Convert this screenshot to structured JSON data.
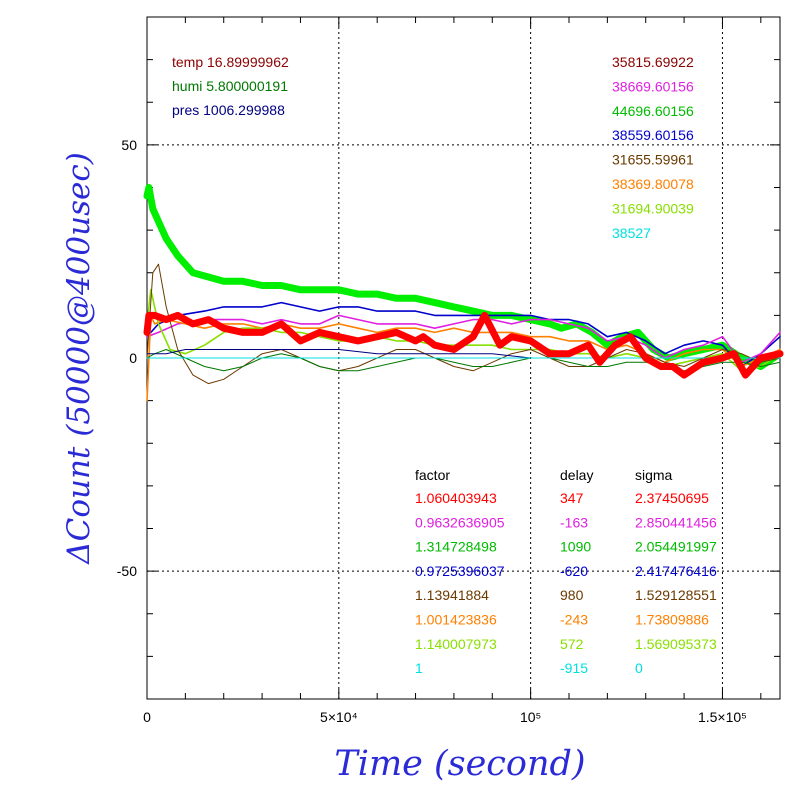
{
  "chart_data": {
    "type": "line",
    "xlabel": "Time (second)",
    "ylabel": "ΔCount (50000@400usec)",
    "xlim": [
      0,
      165000
    ],
    "ylim": [
      -80,
      80
    ],
    "xticks": [
      {
        "value": 0,
        "label": "0"
      },
      {
        "value": 50000,
        "label": "5×10⁴"
      },
      {
        "value": 100000,
        "label": "10⁵"
      },
      {
        "value": 150000,
        "label": "1.5×10⁵"
      }
    ],
    "yticks": [
      {
        "value": 50,
        "label": "50"
      },
      {
        "value": 0,
        "label": "0"
      },
      {
        "value": -50,
        "label": "-50"
      }
    ],
    "grid": "dotted at labeled ticks",
    "env_labels": [
      {
        "text": "temp 16.89999962",
        "color": "#8b0000"
      },
      {
        "text": "humi 5.800000191",
        "color": "#007700"
      },
      {
        "text": "pres 1006.299988",
        "color": "#000080"
      }
    ],
    "mean_counts": [
      {
        "text": "35815.69922",
        "color": "#8b0000"
      },
      {
        "text": "38669.60156",
        "color": "#e020e0"
      },
      {
        "text": "44696.60156",
        "color": "#00bb00"
      },
      {
        "text": "38559.60156",
        "color": "#0000cc"
      },
      {
        "text": "31655.59961",
        "color": "#6b3a00"
      },
      {
        "text": "38369.80078",
        "color": "#ff8000"
      },
      {
        "text": "31694.90039",
        "color": "#88e000"
      },
      {
        "text": "38527",
        "color": "#00e0e0"
      }
    ],
    "table": {
      "headers": [
        "factor",
        "delay",
        "sigma"
      ],
      "rows": [
        {
          "factor": "1.060403943",
          "delay": "347",
          "sigma": "2.37450695",
          "color": "#ff0000"
        },
        {
          "factor": "0.9632636905",
          "delay": "-163",
          "sigma": "2.850441456",
          "color": "#e020e0"
        },
        {
          "factor": "1.314728498",
          "delay": "1090",
          "sigma": "2.054491997",
          "color": "#00bb00"
        },
        {
          "factor": "0.9725396037",
          "delay": "-620",
          "sigma": "2.417476416",
          "color": "#0000cc"
        },
        {
          "factor": "1.13941884",
          "delay": "980",
          "sigma": "1.529128551",
          "color": "#6b3a00"
        },
        {
          "factor": "1.001423836",
          "delay": "-243",
          "sigma": "1.73809886",
          "color": "#ff8000"
        },
        {
          "factor": "1.140007973",
          "delay": "572",
          "sigma": "1.569095373",
          "color": "#88e000"
        },
        {
          "factor": "1",
          "delay": "-915",
          "sigma": "0",
          "color": "#00e0e0"
        }
      ]
    },
    "series": [
      {
        "color": "#00ee00",
        "width": 7,
        "x": [
          0,
          500,
          1500,
          3000,
          5000,
          8000,
          12000,
          16000,
          20000,
          25000,
          30000,
          35000,
          40000,
          45000,
          50000,
          55000,
          60000,
          65000,
          70000,
          75000,
          80000,
          85000,
          90000,
          95000,
          100000,
          105000,
          108000,
          112000,
          116000,
          120000,
          124000,
          128000,
          132000,
          136000,
          140000,
          145000,
          150000,
          155000,
          160000,
          165000
        ],
        "y": [
          38,
          40,
          35,
          32,
          28,
          24,
          20,
          19,
          18,
          18,
          17,
          17,
          16,
          16,
          16,
          15,
          15,
          14,
          14,
          13,
          12,
          11,
          10,
          10,
          9,
          8,
          7,
          8,
          6,
          3,
          5,
          6,
          2,
          0,
          1,
          2,
          3,
          0,
          -2,
          1
        ]
      },
      {
        "color": "#0000cc",
        "width": 1.6,
        "x": [
          0,
          3000,
          8000,
          15000,
          20000,
          25000,
          30000,
          35000,
          40000,
          45000,
          50000,
          55000,
          60000,
          65000,
          70000,
          75000,
          80000,
          85000,
          90000,
          95000,
          100000,
          105000,
          110000,
          115000,
          120000,
          125000,
          130000,
          135000,
          140000,
          145000,
          150000,
          155000,
          160000,
          165000
        ],
        "y": [
          5,
          8,
          10,
          11,
          12,
          12,
          12,
          13,
          12,
          11,
          12,
          12,
          11,
          11,
          11,
          10,
          10,
          10,
          10,
          10,
          10,
          9,
          9,
          8,
          5,
          6,
          4,
          1,
          3,
          4,
          3,
          -2,
          1,
          5
        ]
      },
      {
        "color": "#e020e0",
        "width": 1.6,
        "x": [
          0,
          3000,
          8000,
          15000,
          20000,
          25000,
          30000,
          35000,
          40000,
          45000,
          50000,
          55000,
          60000,
          65000,
          70000,
          75000,
          80000,
          85000,
          90000,
          95000,
          100000,
          105000,
          110000,
          115000,
          120000,
          125000,
          130000,
          135000,
          140000,
          145000,
          150000,
          155000,
          160000,
          165000
        ],
        "y": [
          5,
          6,
          8,
          9,
          9,
          9,
          8,
          9,
          8,
          8,
          10,
          9,
          8,
          8,
          8,
          7,
          8,
          9,
          9,
          8,
          9,
          9,
          8,
          7,
          4,
          5,
          3,
          0,
          2,
          3,
          5,
          -1,
          1,
          6
        ]
      },
      {
        "color": "#ff8000",
        "width": 1.6,
        "x": [
          0,
          1000,
          2000,
          5000,
          10000,
          15000,
          20000,
          25000,
          30000,
          35000,
          40000,
          45000,
          50000,
          55000,
          60000,
          65000,
          70000,
          75000,
          80000,
          85000,
          90000,
          95000,
          100000,
          105000,
          110000,
          115000,
          120000,
          125000,
          130000,
          135000,
          140000,
          145000,
          150000,
          155000,
          160000,
          165000
        ],
        "y": [
          -10,
          10,
          8,
          9,
          8,
          7,
          8,
          8,
          7,
          8,
          7,
          7,
          8,
          7,
          6,
          7,
          7,
          6,
          7,
          6,
          6,
          6,
          5,
          5,
          4,
          4,
          2,
          3,
          1,
          -1,
          1,
          2,
          2,
          -2,
          0,
          2
        ]
      },
      {
        "color": "#88e000",
        "width": 1.6,
        "x": [
          0,
          1000,
          3000,
          6000,
          10000,
          15000,
          20000,
          25000,
          30000,
          35000,
          40000,
          45000,
          50000,
          55000,
          60000,
          65000,
          70000,
          75000,
          80000,
          85000,
          90000,
          95000,
          100000,
          105000,
          110000,
          115000,
          120000,
          125000,
          130000,
          135000,
          140000,
          145000,
          150000,
          155000,
          160000,
          165000
        ],
        "y": [
          8,
          16,
          8,
          2,
          1,
          3,
          6,
          7,
          7,
          6,
          6,
          5,
          4,
          4,
          5,
          4,
          4,
          3,
          3,
          3,
          3,
          2,
          2,
          2,
          1,
          1,
          0,
          1,
          0,
          -2,
          -1,
          0,
          1,
          -3,
          -2,
          1
        ]
      },
      {
        "color": "#6b3a00",
        "width": 1,
        "x": [
          0,
          1500,
          3000,
          5000,
          8000,
          12000,
          16000,
          20000,
          25000,
          30000,
          35000,
          40000,
          45000,
          50000,
          55000,
          60000,
          65000,
          70000,
          75000,
          80000,
          85000,
          90000,
          95000,
          100000,
          105000,
          110000,
          115000,
          120000,
          125000,
          130000,
          135000,
          140000,
          145000,
          150000,
          155000,
          160000,
          165000
        ],
        "y": [
          0,
          20,
          22,
          12,
          2,
          -4,
          -6,
          -5,
          -2,
          1,
          2,
          0,
          -2,
          -3,
          -2,
          0,
          2,
          2,
          0,
          -2,
          -3,
          -1,
          1,
          2,
          0,
          -2,
          -2,
          0,
          2,
          1,
          -1,
          -2,
          0,
          2,
          1,
          -1,
          0
        ]
      },
      {
        "color": "#007700",
        "width": 1,
        "x": [
          0,
          2000,
          5000,
          10000,
          15000,
          20000,
          25000,
          30000,
          35000,
          40000,
          45000,
          50000,
          55000,
          60000,
          65000,
          70000,
          75000,
          80000,
          85000,
          90000,
          95000,
          100000,
          105000,
          110000,
          115000,
          120000,
          125000,
          130000,
          135000,
          140000,
          145000,
          150000,
          155000,
          160000,
          165000
        ],
        "y": [
          0,
          1,
          2,
          0,
          -2,
          -3,
          -2,
          0,
          1,
          0,
          -2,
          -3,
          -3,
          -2,
          -1,
          0,
          0,
          -1,
          -2,
          -2,
          -1,
          0,
          0,
          -1,
          -2,
          -2,
          -1,
          -1,
          -2,
          -3,
          -2,
          -1,
          -1,
          -2,
          -1
        ]
      },
      {
        "color": "#000080",
        "width": 1,
        "x": [
          0,
          5000,
          10000,
          20000,
          30000,
          40000,
          50000,
          60000,
          70000,
          80000,
          90000,
          100000,
          110000,
          120000,
          130000,
          140000,
          150000,
          160000,
          165000
        ],
        "y": [
          1,
          1,
          2,
          2,
          2,
          2,
          2,
          1,
          1,
          1,
          1,
          0,
          0,
          0,
          0,
          0,
          0,
          0,
          0
        ]
      },
      {
        "color": "#00e0e0",
        "width": 1,
        "x": [
          0,
          165000
        ],
        "y": [
          0,
          0
        ]
      },
      {
        "color": "#ff0000",
        "width": 7,
        "x": [
          0,
          500,
          2000,
          5000,
          8000,
          12000,
          16000,
          20000,
          25000,
          30000,
          35000,
          40000,
          45000,
          50000,
          55000,
          60000,
          65000,
          70000,
          72000,
          75000,
          80000,
          85000,
          88000,
          92000,
          95000,
          100000,
          105000,
          110000,
          115000,
          118000,
          122000,
          126000,
          130000,
          134000,
          137000,
          140000,
          145000,
          150000,
          153000,
          156000,
          160000,
          165000
        ],
        "y": [
          6,
          10,
          10,
          9,
          10,
          8,
          9,
          7,
          6,
          6,
          8,
          4,
          6,
          5,
          4,
          5,
          6,
          4,
          5,
          3,
          2,
          5,
          10,
          3,
          5,
          4,
          1,
          1,
          3,
          -1,
          3,
          5,
          0,
          -2,
          -2,
          -4,
          -1,
          0,
          1,
          -4,
          0,
          1
        ]
      }
    ]
  }
}
